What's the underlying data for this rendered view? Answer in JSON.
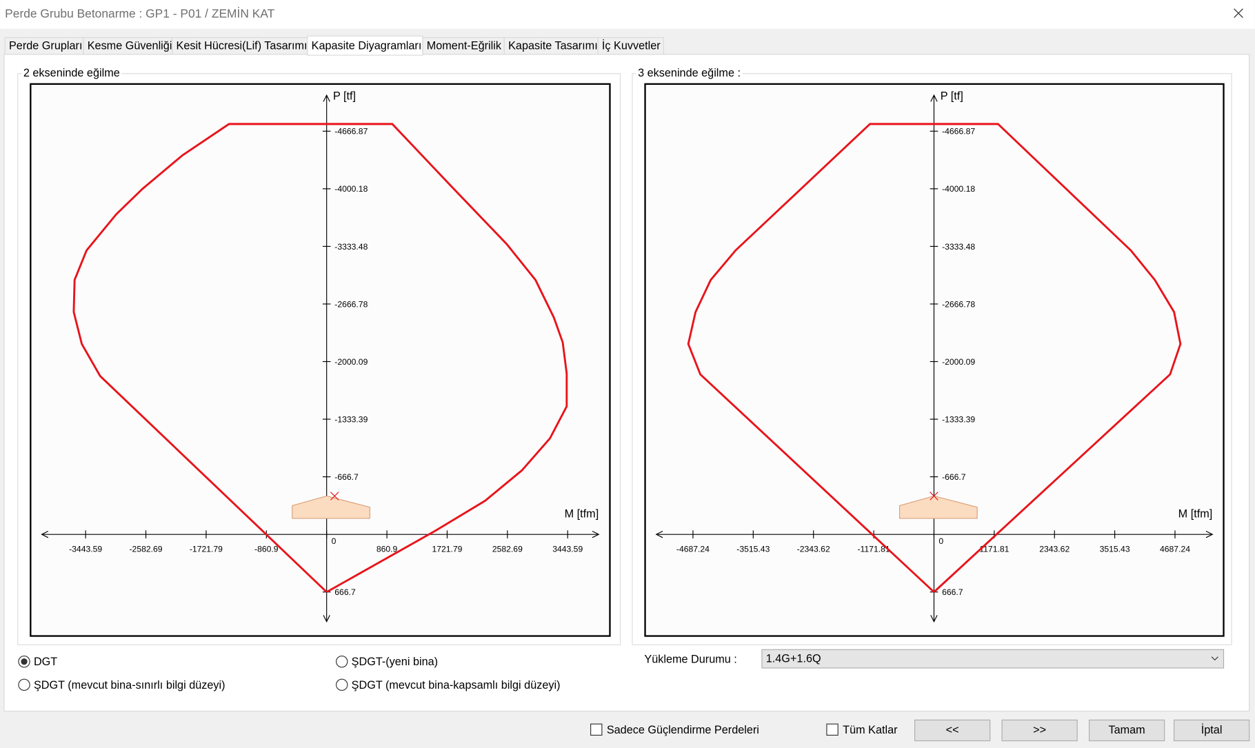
{
  "window": {
    "title": "Perde Grubu Betonarme  :  GP1 - P01 / ZEMİN KAT"
  },
  "tabs": {
    "items": [
      "Perde Grupları",
      "Kesme Güvenliği",
      "Kesit Hücresi(Lif) Tasarımı",
      "Kapasite Diyagramları",
      "Moment-Eğrilik",
      "Kapasite Tasarımı",
      "İç Kuvvetler"
    ],
    "active": 3
  },
  "chart_data": [
    {
      "type": "line",
      "title": "2 ekseninde eğilme",
      "x_label": "M [tfm]",
      "y_label": "P [tf]",
      "xlim": [
        -4230,
        4047
      ],
      "ylim": [
        1176,
        -5213
      ],
      "xticks": [
        -3443.59,
        -2582.69,
        -1721.79,
        -860.9,
        0,
        860.9,
        1721.79,
        2582.69,
        3443.59
      ],
      "yticks": [
        -4666.87,
        -4000.18,
        -3333.48,
        -2666.78,
        -2000.09,
        -1333.39,
        -666.7,
        666.7
      ],
      "series": [
        {
          "color": "#e8141b",
          "x": [
            0,
            -3236,
            -3498,
            -3613,
            -3601,
            -3430,
            -3007,
            -2630,
            -2058,
            -1395,
            938,
            1772,
            2572,
            2984,
            3247,
            3373,
            3430,
            3430,
            3190,
            2790,
            2264,
            1543,
            0
          ],
          "values": [
            667,
            -1833,
            -2204,
            -2574,
            -2945,
            -3287,
            -3704,
            -4000,
            -4389,
            -4750,
            -4750,
            -4037,
            -3361,
            -2945,
            -2509,
            -2222,
            -1861,
            -1482,
            -1111,
            -741,
            -389,
            -37,
            667
          ]
        }
      ],
      "load_point": {
        "x": 114,
        "y": -444
      }
    },
    {
      "type": "line",
      "title": "3 ekseninde eğilme :",
      "x_label": "M [tfm]",
      "y_label": "P [tf]",
      "xlim": [
        -5618,
        5633
      ],
      "ylim": [
        1176,
        -5213
      ],
      "xticks": [
        -4687.24,
        -3515.43,
        -2343.62,
        -1171.81,
        0,
        1171.81,
        2343.62,
        3515.43,
        4687.24
      ],
      "yticks": [
        -4666.87,
        -4000.18,
        -3333.48,
        -2666.78,
        -2000.09,
        -1333.39,
        -666.7,
        666.7
      ],
      "series": [
        {
          "color": "#e8141b",
          "x": [
            0,
            -4544,
            -4778,
            -4637,
            -4342,
            -3859,
            -1245,
            1245,
            3828,
            4295,
            4669,
            4793,
            4591,
            0
          ],
          "values": [
            667,
            -1852,
            -2204,
            -2574,
            -2945,
            -3287,
            -4750,
            -4750,
            -3287,
            -2945,
            -2574,
            -2204,
            -1852,
            667
          ]
        }
      ],
      "load_point": {
        "x": 0,
        "y": -444
      }
    }
  ],
  "options": {
    "radios": [
      "DGT",
      "ŞDGT-(yeni bina)",
      "ŞDGT (mevcut bina-sınırlı bilgi düzeyi)",
      "ŞDGT (mevcut bina-kapsamlı bilgi düzeyi)"
    ],
    "selected": 0
  },
  "loading": {
    "label": "Yükleme Durumu :",
    "value": "1.4G+1.6Q"
  },
  "footer": {
    "checkboxes": [
      "Sadece Güçlendirme Perdeleri",
      "Tüm Katlar"
    ],
    "buttons": [
      "<<",
      ">>",
      "Tamam",
      "İptal"
    ]
  }
}
